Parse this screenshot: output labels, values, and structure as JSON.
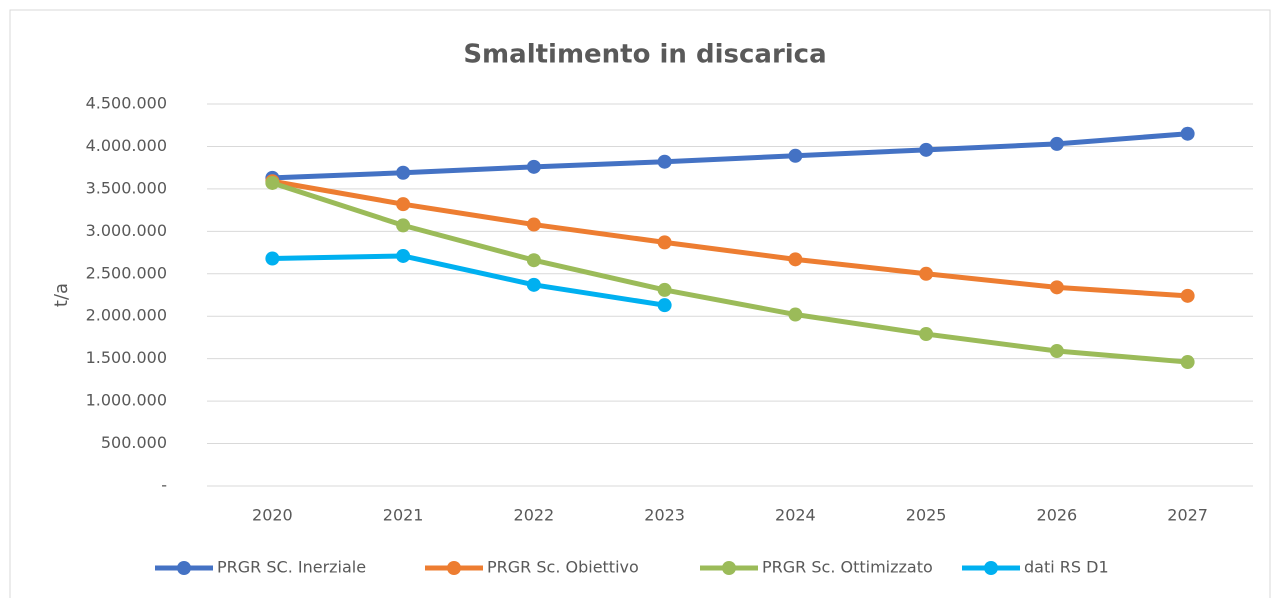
{
  "chart_data": {
    "type": "line",
    "title": "Smaltimento in discarica",
    "y_label": "t/a",
    "categories": [
      "2020",
      "2021",
      "2022",
      "2023",
      "2024",
      "2025",
      "2026",
      "2027"
    ],
    "series": [
      {
        "name": "PRGR SC. Inerziale",
        "color": "#4472c4",
        "values": [
          3630000,
          3690000,
          3760000,
          3820000,
          3890000,
          3960000,
          4030000,
          4150000
        ]
      },
      {
        "name": "PRGR Sc. Obiettivo",
        "color": "#ed7d31",
        "values": [
          3590000,
          3320000,
          3080000,
          2870000,
          2670000,
          2500000,
          2340000,
          2240000
        ]
      },
      {
        "name": "PRGR Sc. Ottimizzato",
        "color": "#9bbb59",
        "values": [
          3570000,
          3070000,
          2660000,
          2310000,
          2020000,
          1790000,
          1590000,
          1460000
        ]
      },
      {
        "name": "dati RS D1",
        "color": "#00b0f0",
        "values": [
          2680000,
          2710000,
          2370000,
          2130000,
          null,
          null,
          null,
          null
        ]
      }
    ],
    "ylim": [
      0,
      4500000
    ],
    "yticks": [
      {
        "value": 0,
        "label": "-"
      },
      {
        "value": 500000,
        "label": "500.000"
      },
      {
        "value": 1000000,
        "label": "1.000.000"
      },
      {
        "value": 1500000,
        "label": "1.500.000"
      },
      {
        "value": 2000000,
        "label": "2.000.000"
      },
      {
        "value": 2500000,
        "label": "2.500.000"
      },
      {
        "value": 3000000,
        "label": "3.000.000"
      },
      {
        "value": 3500000,
        "label": "3.500.000"
      },
      {
        "value": 4000000,
        "label": "4.000.000"
      },
      {
        "value": 4500000,
        "label": "4.500.000"
      }
    ],
    "grid": true,
    "legend": "bottom"
  }
}
